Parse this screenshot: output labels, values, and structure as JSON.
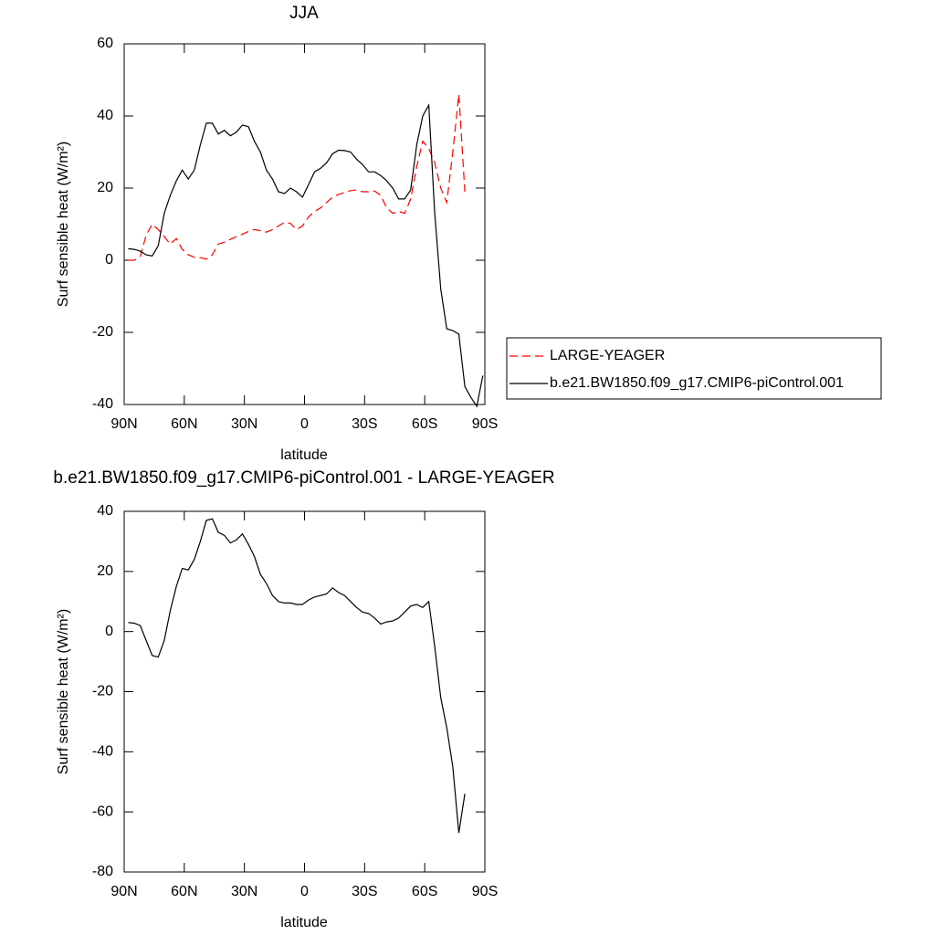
{
  "chart_data": [
    {
      "type": "line",
      "title": "JJA",
      "xlabel": "latitude",
      "ylabel": "Surf sensible heat (W/m²)",
      "x": [
        88,
        85,
        82,
        79,
        76,
        73,
        70,
        67,
        64,
        61,
        58,
        55,
        52,
        49,
        46,
        43,
        40,
        37,
        34,
        31,
        28,
        25,
        22,
        19,
        16,
        13,
        10,
        7,
        4,
        1,
        -2,
        -5,
        -8,
        -11,
        -14,
        -17,
        -20,
        -23,
        -26,
        -29,
        -32,
        -35,
        -38,
        -41,
        -44,
        -47,
        -50,
        -53,
        -56,
        -59,
        -62,
        -65,
        -68,
        -71,
        -74,
        -77,
        -80,
        -83,
        -86,
        -89
      ],
      "series": [
        {
          "name": "LARGE-YEAGER",
          "color": "#ff0000",
          "dash": true,
          "values": [
            0,
            0,
            1,
            7,
            10,
            8.5,
            6.5,
            4.5,
            6,
            3,
            1.5,
            0.8,
            0.7,
            0.3,
            1.5,
            4.5,
            5,
            5.8,
            6.5,
            7.2,
            8,
            8.5,
            8.2,
            7.8,
            8.5,
            9.5,
            10.5,
            10.2,
            8.5,
            9.5,
            12,
            13.5,
            14.5,
            16,
            17.5,
            18.2,
            18.8,
            19.3,
            19.5,
            19,
            19,
            19.2,
            18,
            14.5,
            13,
            13.5,
            13,
            17,
            26,
            33,
            31,
            27,
            20,
            16,
            30,
            46,
            19,
            null,
            null,
            null
          ]
        },
        {
          "name": "b.e21.BW1850.f09_g17.CMIP6-piControl.001",
          "color": "#000000",
          "dash": false,
          "values": [
            3.2,
            3,
            2.5,
            1.5,
            1.2,
            4,
            13,
            18,
            22,
            25,
            22.5,
            25,
            32,
            38,
            38,
            35,
            36,
            34.5,
            35.5,
            37.5,
            37,
            33,
            30,
            25,
            22.5,
            19,
            18.5,
            20,
            19,
            17.5,
            21,
            24.5,
            25.5,
            27,
            29.5,
            30.5,
            30.4,
            30,
            28,
            26.5,
            24.5,
            24.5,
            23.5,
            22,
            20,
            17,
            17,
            19.5,
            32,
            40,
            43,
            13,
            -8,
            -19,
            -19.5,
            -20.5,
            -35,
            -38,
            -40.5,
            -32
          ]
        }
      ],
      "xlim": [
        90,
        -90
      ],
      "xticks": [
        {
          "value": 90,
          "label": "90N"
        },
        {
          "value": 60,
          "label": "60N"
        },
        {
          "value": 30,
          "label": "30N"
        },
        0,
        {
          "value": -30,
          "label": "30S"
        },
        {
          "value": -60,
          "label": "60S"
        },
        {
          "value": -90,
          "label": "90S"
        }
      ],
      "ylim": [
        -40,
        60
      ],
      "yticks": [
        -40,
        -20,
        0,
        20,
        40,
        60
      ],
      "legend": "right"
    },
    {
      "type": "line",
      "title": "b.e21.BW1850.f09_g17.CMIP6-piControl.001 - LARGE-YEAGER",
      "xlabel": "latitude",
      "ylabel": "Surf sensible heat (W/m²)",
      "x": [
        88,
        85,
        82,
        79,
        76,
        73,
        70,
        67,
        64,
        61,
        58,
        55,
        52,
        49,
        46,
        43,
        40,
        37,
        34,
        31,
        28,
        25,
        22,
        19,
        16,
        13,
        10,
        7,
        4,
        1,
        -2,
        -5,
        -8,
        -11,
        -14,
        -17,
        -20,
        -23,
        -26,
        -29,
        -32,
        -35,
        -38,
        -41,
        -44,
        -47,
        -50,
        -53,
        -56,
        -59,
        -62,
        -65,
        -68,
        -71,
        -74,
        -77,
        -80,
        -83,
        -86,
        -89
      ],
      "color": "#000000",
      "values": [
        3,
        2.8,
        2,
        -3,
        -8,
        -8.5,
        -3,
        7,
        15,
        21,
        20.5,
        24,
        30,
        37,
        37.5,
        33,
        32,
        29.5,
        30.5,
        32.5,
        29,
        25,
        19,
        16,
        12,
        10,
        9.5,
        9.5,
        9,
        9,
        10.5,
        11.5,
        12,
        12.5,
        14.5,
        13,
        12,
        10,
        8,
        6.5,
        6,
        4.5,
        2.5,
        3.2,
        3.5,
        4.5,
        6.5,
        8.5,
        9,
        8,
        10,
        -5,
        -22,
        -32,
        -45,
        -67,
        -54,
        null,
        null,
        null
      ],
      "xlim": [
        90,
        -90
      ],
      "xticks": [
        {
          "value": 90,
          "label": "90N"
        },
        {
          "value": 60,
          "label": "60N"
        },
        {
          "value": 30,
          "label": "30N"
        },
        0,
        {
          "value": -30,
          "label": "30S"
        },
        {
          "value": -60,
          "label": "60S"
        },
        {
          "value": -90,
          "label": "90S"
        }
      ],
      "ylim": [
        -80,
        40
      ],
      "yticks": [
        -80,
        -60,
        -40,
        -20,
        0,
        20,
        40
      ]
    }
  ]
}
